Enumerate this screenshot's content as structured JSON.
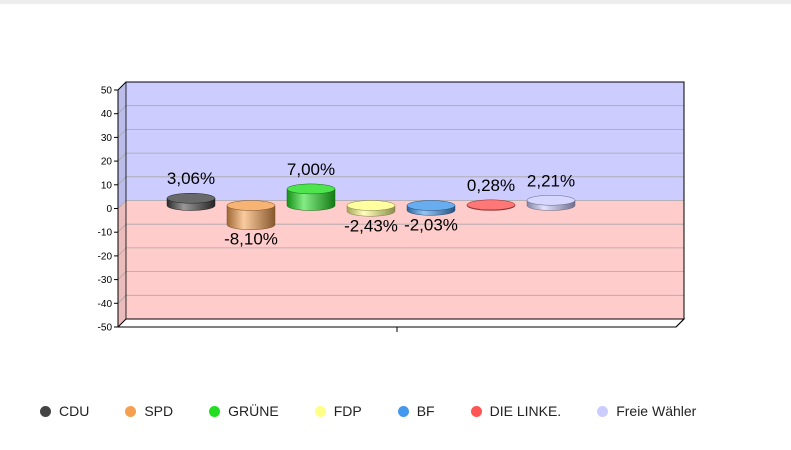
{
  "chart_data": {
    "type": "bar",
    "style": "3d-cylinder",
    "categories": [
      "CDU",
      "SPD",
      "GRÜNE",
      "FDP",
      "BF",
      "DIE LINKE.",
      "Freie Wähler"
    ],
    "values": [
      3.06,
      -8.1,
      7.0,
      -2.43,
      -2.03,
      0.28,
      2.21
    ],
    "data_labels": [
      "3,06%",
      "-8,10%",
      "7,00%",
      "-2,43%",
      "-2,03%",
      "0,28%",
      "2,21%"
    ],
    "colors": [
      "#444444",
      "#f5a050",
      "#22dd22",
      "#ffff88",
      "#4499ee",
      "#ff5555",
      "#ccccff"
    ],
    "ylim": [
      -50,
      50
    ],
    "yticks": [
      50,
      40,
      30,
      20,
      10,
      0,
      -10,
      -20,
      -30,
      -40,
      -50
    ],
    "positive_bg": "#ccccff",
    "negative_bg": "#ffcccc",
    "grid": true,
    "legend_position": "bottom",
    "title": "",
    "xlabel": "",
    "ylabel": ""
  }
}
